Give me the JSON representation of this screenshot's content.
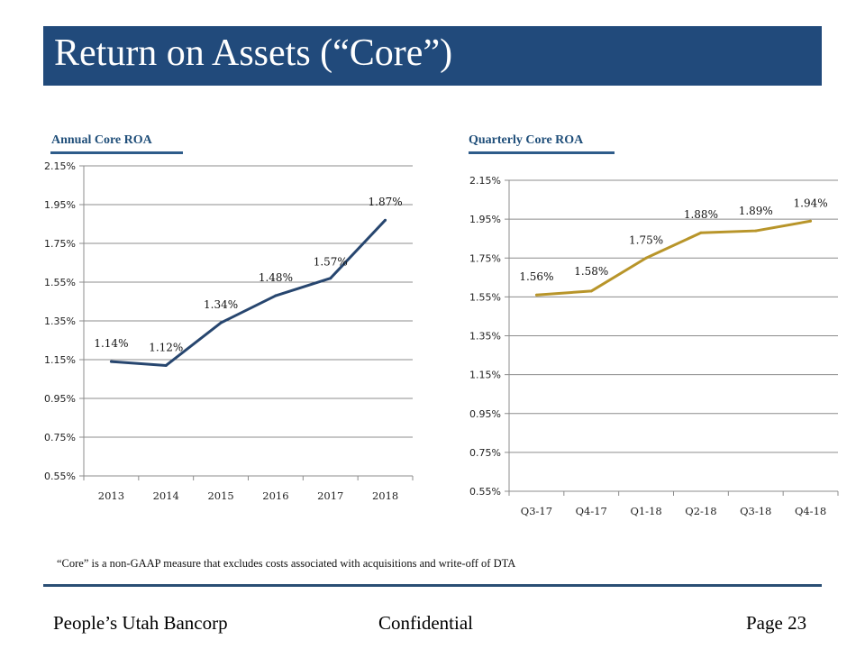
{
  "header": {
    "title": "Return on Assets (“Core”)"
  },
  "colors": {
    "title_bar": "#214a7b",
    "annual_line": "#27466f",
    "quarterly_line": "#b8952a",
    "gridline": "#8c8c8c"
  },
  "chart_data": [
    {
      "type": "line",
      "title": "Annual  Core ROA",
      "categories": [
        "2013",
        "2014",
        "2015",
        "2016",
        "2017",
        "2018"
      ],
      "series": [
        {
          "name": "Annual Core ROA",
          "values": [
            1.14,
            1.12,
            1.34,
            1.48,
            1.57,
            1.87
          ]
        }
      ],
      "data_labels": [
        "1.14%",
        "1.12%",
        "1.34%",
        "1.48%",
        "1.57%",
        "1.87%"
      ],
      "yticks": [
        "2.15%",
        "1.95%",
        "1.75%",
        "1.55%",
        "1.35%",
        "1.15%",
        "0.95%",
        "0.75%",
        "0.55%"
      ],
      "ytick_values": [
        2.15,
        1.95,
        1.75,
        1.55,
        1.35,
        1.15,
        0.95,
        0.75,
        0.55
      ],
      "ylim": [
        0.55,
        2.15
      ],
      "xlabel": "",
      "ylabel": "",
      "grid": true,
      "legend": "none"
    },
    {
      "type": "line",
      "title": "Quarterly Core ROA",
      "categories": [
        "Q3-17",
        "Q4-17",
        "Q1-18",
        "Q2-18",
        "Q3-18",
        "Q4-18"
      ],
      "series": [
        {
          "name": "Quarterly Core ROA",
          "values": [
            1.56,
            1.58,
            1.75,
            1.88,
            1.89,
            1.94
          ]
        }
      ],
      "data_labels": [
        "1.56%",
        "1.58%",
        "1.75%",
        "1.88%",
        "1.89%",
        "1.94%"
      ],
      "yticks": [
        "2.15%",
        "1.95%",
        "1.75%",
        "1.55%",
        "1.35%",
        "1.15%",
        "0.95%",
        "0.75%",
        "0.55%"
      ],
      "ytick_values": [
        2.15,
        1.95,
        1.75,
        1.55,
        1.35,
        1.15,
        0.95,
        0.75,
        0.55
      ],
      "ylim": [
        0.55,
        2.15
      ],
      "xlabel": "",
      "ylabel": "",
      "grid": true,
      "legend": "none"
    }
  ],
  "footnote": "“Core” is a non-GAAP measure that excludes costs associated with acquisitions and write-off of DTA",
  "footer": {
    "company": "People’s Utah Bancorp",
    "confidential": "Confidential",
    "page": "Page 23"
  }
}
